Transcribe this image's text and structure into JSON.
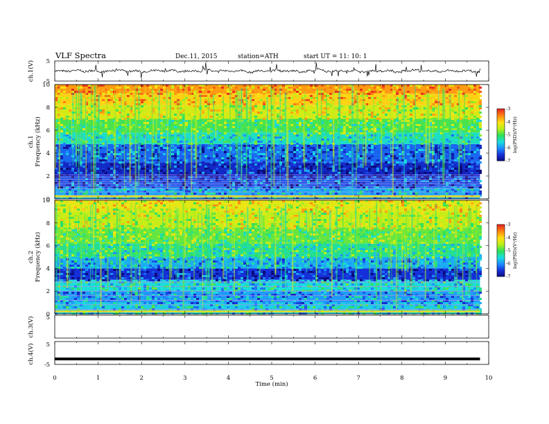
{
  "header": {
    "title": "VLF  Spectra",
    "date": "Dec.11, 2015",
    "station": "station=ATH",
    "start": "start  UT  =    11: 10: 1"
  },
  "colors": {
    "spectrum": [
      "#0b0b7a",
      "#1530d8",
      "#1e8cff",
      "#19dede",
      "#2ee05a",
      "#b8f018",
      "#ffe114",
      "#ff8a12",
      "#e62b1e",
      "#ffffff"
    ],
    "harmonic_lines": "#c090e8",
    "trace": "#000000"
  },
  "chart_data": [
    {
      "type": "line",
      "id": "ch1-waveform",
      "ylabel": "ch.1(V)",
      "ylim": [
        -5,
        5
      ],
      "yticks": [
        "5",
        "-5"
      ],
      "description_level": 0,
      "samples": [
        0.2,
        -0.4,
        1.1,
        -0.8,
        0.5,
        -1.2,
        0.3,
        2.1,
        -0.6,
        0.4,
        -1.9,
        0.8,
        -0.3,
        1.5,
        -0.9,
        0.2,
        -0.5,
        2.4,
        -1.1,
        0.6,
        -0.2,
        0.9,
        -2.2,
        0.4,
        -0.7,
        1.3,
        -0.4,
        0.7,
        -1.4,
        0.1,
        2.6,
        -0.8,
        0.3,
        -0.5,
        1.0,
        -1.6,
        0.6,
        -0.3,
        0.8,
        -2.0,
        0.5,
        1.8,
        -0.6,
        0.2,
        -0.9,
        1.2,
        -0.4,
        0.3,
        -1.3,
        2.3
      ]
    },
    {
      "type": "heatmap",
      "id": "ch1-spectrogram",
      "ylabel": "ch.1\nFrequency (kHz)",
      "ylim": [
        0,
        10
      ],
      "yticks": [
        "0",
        "2",
        "4",
        "6",
        "8",
        "10"
      ],
      "xlim": [
        0,
        10
      ],
      "x_end": 9.8,
      "colorbar": {
        "label": "log(PSD)(V²/Hz)",
        "range": [
          -7,
          -3
        ],
        "ticks": [
          "-3",
          "-4",
          "-5",
          "-6",
          "-7"
        ]
      },
      "bands": [
        {
          "from": 0.0,
          "to": 1.0,
          "level": -5.8
        },
        {
          "from": 1.0,
          "to": 2.0,
          "level": -6.3
        },
        {
          "from": 2.0,
          "to": 3.2,
          "level": -6.6
        },
        {
          "from": 3.2,
          "to": 4.8,
          "level": -6.2
        },
        {
          "from": 4.8,
          "to": 5.8,
          "level": -5.4
        },
        {
          "from": 5.8,
          "to": 7.0,
          "level": -4.9
        },
        {
          "from": 7.0,
          "to": 8.2,
          "level": -4.3
        },
        {
          "from": 8.2,
          "to": 9.2,
          "level": -3.9
        },
        {
          "from": 9.2,
          "to": 10.0,
          "level": -3.6
        }
      ],
      "lines_khz": [
        0.3,
        0.6,
        0.9,
        1.1,
        1.3,
        1.5,
        1.7,
        1.9,
        2.1
      ]
    },
    {
      "type": "heatmap",
      "id": "ch2-spectrogram",
      "ylabel": "ch.2\nFrequency (kHz)",
      "ylim": [
        0,
        10
      ],
      "yticks": [
        "0",
        "2",
        "4",
        "6",
        "8",
        "10"
      ],
      "xlim": [
        0,
        10
      ],
      "x_end": 9.8,
      "colorbar": {
        "label": "log(PSD)(V²/Hz)",
        "range": [
          -7,
          -3
        ],
        "ticks": [
          "-3",
          "-4",
          "-5",
          "-6",
          "-7"
        ]
      },
      "bands": [
        {
          "from": 0.0,
          "to": 1.0,
          "level": -5.6
        },
        {
          "from": 1.0,
          "to": 2.0,
          "level": -5.9
        },
        {
          "from": 2.0,
          "to": 3.0,
          "level": -5.5
        },
        {
          "from": 3.0,
          "to": 4.0,
          "level": -6.5
        },
        {
          "from": 4.0,
          "to": 5.0,
          "level": -5.8
        },
        {
          "from": 5.0,
          "to": 6.2,
          "level": -5.2
        },
        {
          "from": 6.2,
          "to": 7.6,
          "level": -4.8
        },
        {
          "from": 7.6,
          "to": 9.0,
          "level": -4.4
        },
        {
          "from": 9.0,
          "to": 10.0,
          "level": -4.2
        }
      ],
      "lines_khz": [
        0.4,
        0.8,
        1.2,
        1.6,
        2.0,
        2.4,
        2.8
      ]
    },
    {
      "type": "line",
      "id": "ch3-waveform",
      "ylabel": "ch.3(V)",
      "ylim": [
        -5,
        5
      ],
      "yticks": [
        "5"
      ],
      "level": null
    },
    {
      "type": "line",
      "id": "ch4-waveform",
      "ylabel": "ch.4(V)",
      "ylim": [
        -5,
        5
      ],
      "yticks": [
        "5",
        "-5"
      ],
      "level": -2
    }
  ],
  "time_axis": {
    "xlabel": "Time  (min)",
    "xlim": [
      0,
      10
    ],
    "ticks": [
      "0",
      "1",
      "2",
      "3",
      "4",
      "5",
      "6",
      "7",
      "8",
      "9",
      "10"
    ]
  }
}
